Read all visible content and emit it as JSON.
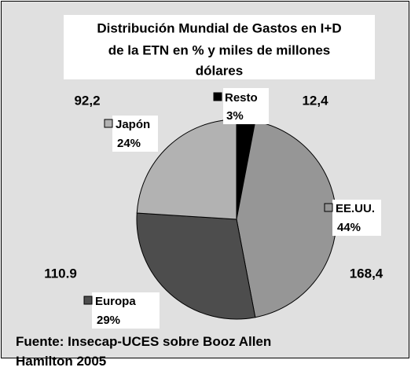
{
  "chart_data": {
    "type": "pie",
    "title_lines": [
      "Distribución Mundial de Gastos en I+D",
      "de la ETN en % y miles de millones",
      "dólares"
    ],
    "categories": [
      "Resto",
      "EE.UU.",
      "Europa",
      "Japón"
    ],
    "values": [
      3,
      44,
      29,
      24
    ],
    "value_labels": [
      "3%",
      "44%",
      "29%",
      "24%"
    ],
    "colors": [
      "#000000",
      "#969696",
      "#4d4d4d",
      "#b2b2b2"
    ],
    "amount_labels": [
      "12,4",
      "168,4",
      "110.9",
      "92,2"
    ],
    "source": "Fuente: Insecap-UCES sobre Booz Allen Hamilton 2005"
  }
}
